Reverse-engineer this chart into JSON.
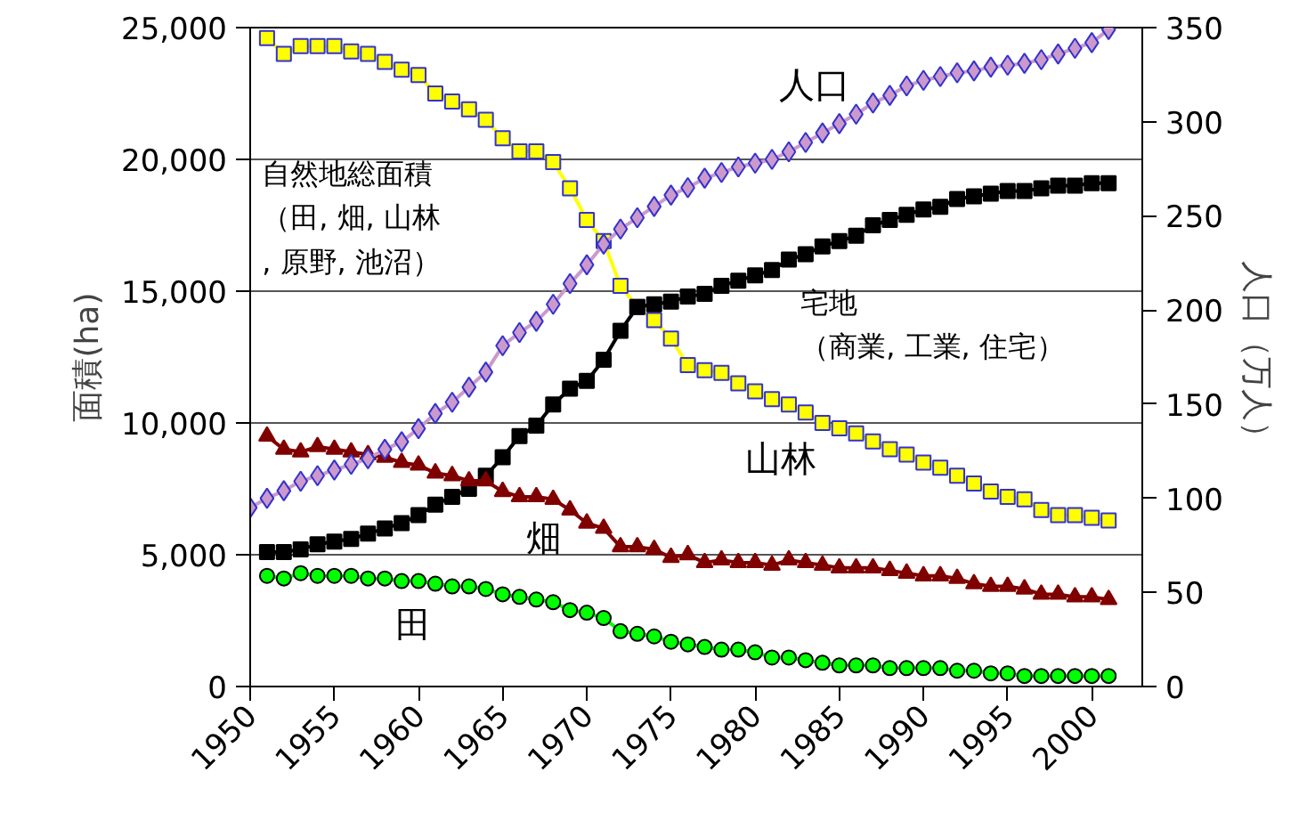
{
  "chart_data": {
    "type": "line",
    "ylabel": "面積(ha)",
    "y2label": "人口（万人）",
    "x": [
      1951,
      1952,
      1953,
      1954,
      1955,
      1956,
      1957,
      1958,
      1959,
      1960,
      1961,
      1962,
      1963,
      1964,
      1965,
      1966,
      1967,
      1968,
      1969,
      1970,
      1971,
      1972,
      1973,
      1974,
      1975,
      1976,
      1977,
      1978,
      1979,
      1980,
      1981,
      1982,
      1983,
      1984,
      1985,
      1986,
      1987,
      1988,
      1989,
      1990,
      1991,
      1992,
      1993,
      1994,
      1995,
      1996,
      1997,
      1998,
      1999,
      2000,
      2001
    ],
    "series": [
      {
        "name": "山林",
        "color": "#ffff00",
        "marker": "square",
        "values": [
          24600,
          24000,
          24300,
          24300,
          24300,
          24100,
          24000,
          23700,
          23400,
          23200,
          22500,
          22200,
          21900,
          21500,
          20800,
          20300,
          20300,
          19900,
          18900,
          17700,
          16900,
          15200,
          14400,
          13900,
          13200,
          12200,
          12000,
          11900,
          11500,
          11200,
          10900,
          10700,
          10400,
          10000,
          9800,
          9600,
          9300,
          9000,
          8800,
          8500,
          8300,
          8000,
          7700,
          7400,
          7200,
          7100,
          6700,
          6500,
          6500,
          6400,
          6300
        ]
      },
      {
        "name": "宅地（商業, 工業, 住宅）",
        "color": "#000000",
        "marker": "square",
        "values": [
          5100,
          5100,
          5200,
          5400,
          5500,
          5600,
          5800,
          6000,
          6200,
          6500,
          6900,
          7200,
          7500,
          8000,
          8700,
          9500,
          9900,
          10700,
          11300,
          11600,
          12400,
          13500,
          14400,
          14500,
          14600,
          14800,
          14900,
          15200,
          15400,
          15600,
          15800,
          16200,
          16400,
          16700,
          16900,
          17100,
          17500,
          17700,
          17900,
          18100,
          18200,
          18500,
          18600,
          18700,
          18800,
          18800,
          18900,
          19000,
          19000,
          19100,
          19100
        ]
      },
      {
        "name": "畑",
        "color": "#800000",
        "marker": "triangle",
        "values": [
          9500,
          9000,
          8900,
          9100,
          9000,
          8900,
          8800,
          8700,
          8500,
          8400,
          8100,
          8000,
          7800,
          7800,
          7400,
          7200,
          7200,
          7100,
          6700,
          6200,
          6000,
          5300,
          5300,
          5200,
          4900,
          5000,
          4700,
          4800,
          4700,
          4700,
          4600,
          4800,
          4700,
          4600,
          4500,
          4500,
          4500,
          4400,
          4300,
          4200,
          4200,
          4100,
          3900,
          3800,
          3800,
          3700,
          3500,
          3500,
          3400,
          3400,
          3300
        ]
      },
      {
        "name": "田",
        "color": "#00ff00",
        "marker": "circle",
        "values": [
          4200,
          4100,
          4300,
          4200,
          4200,
          4200,
          4100,
          4100,
          4000,
          4000,
          3900,
          3800,
          3800,
          3700,
          3500,
          3400,
          3300,
          3200,
          2900,
          2800,
          2600,
          2100,
          2000,
          1900,
          1700,
          1600,
          1500,
          1400,
          1400,
          1300,
          1100,
          1100,
          1000,
          900,
          800,
          800,
          800,
          700,
          700,
          700,
          700,
          600,
          600,
          500,
          500,
          400,
          400,
          400,
          400,
          400,
          400
        ]
      },
      {
        "name": "人口",
        "color": "#cc99cc",
        "marker": "diamond",
        "axis": "y2",
        "x": [
          1950,
          1951,
          1952,
          1953,
          1954,
          1955,
          1956,
          1957,
          1958,
          1959,
          1960,
          1961,
          1962,
          1963,
          1964,
          1965,
          1966,
          1967,
          1968,
          1969,
          1970,
          1971,
          1972,
          1973,
          1974,
          1975,
          1976,
          1977,
          1978,
          1979,
          1980,
          1981,
          1982,
          1983,
          1984,
          1985,
          1986,
          1987,
          1988,
          1989,
          1990,
          1991,
          1992,
          1993,
          1994,
          1995,
          1996,
          1997,
          1998,
          1999,
          2000,
          2001
        ],
        "values": [
          95,
          100,
          104,
          109,
          112,
          115,
          118,
          121,
          126,
          130,
          137,
          145,
          151,
          159,
          167,
          181,
          188,
          194,
          203,
          214,
          224,
          235,
          243,
          249,
          255,
          261,
          265,
          270,
          273,
          276,
          278,
          280,
          284,
          289,
          294,
          299,
          304,
          310,
          314,
          319,
          322,
          324,
          326,
          327,
          329,
          330,
          331,
          333,
          336,
          339,
          342,
          349
        ]
      }
    ],
    "xlim": [
      1950,
      2003
    ],
    "xticks": [
      1950,
      1955,
      1960,
      1965,
      1970,
      1975,
      1980,
      1985,
      1990,
      1995,
      2000
    ],
    "ylim": [
      0,
      25000
    ],
    "yticks": [
      {
        "value": 0,
        "label": "0"
      },
      {
        "value": 5000,
        "label": "5,000"
      },
      {
        "value": 10000,
        "label": "10,000"
      },
      {
        "value": 15000,
        "label": "15,000"
      },
      {
        "value": 20000,
        "label": "20,000"
      },
      {
        "value": 25000,
        "label": "25,000"
      }
    ],
    "y2lim": [
      0,
      350
    ],
    "y2ticks": [
      0,
      50,
      100,
      150,
      200,
      250,
      300,
      350
    ],
    "grid": "y",
    "annotations": [
      "自然地総面積（田, 畑, 山林, 原野, 池沼）"
    ]
  }
}
